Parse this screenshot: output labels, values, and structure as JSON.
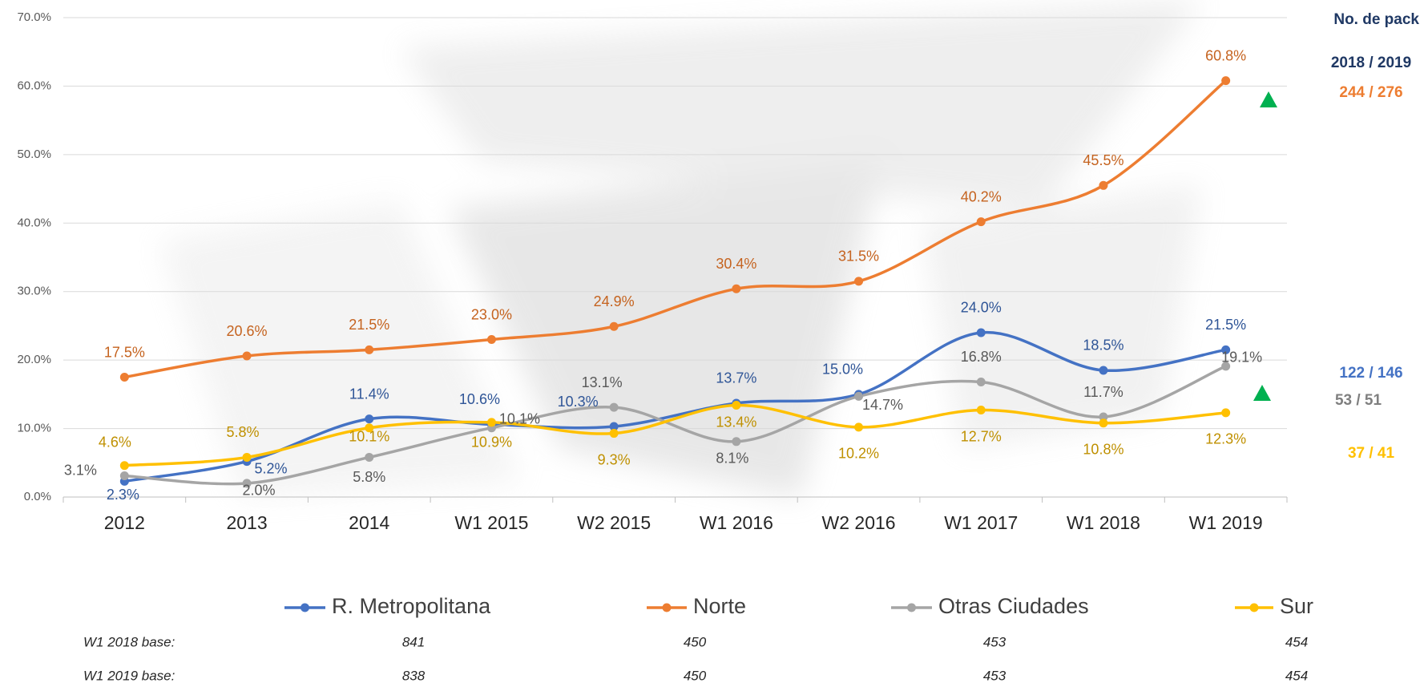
{
  "chart_data": {
    "type": "line",
    "categories": [
      "2012",
      "2013",
      "2014",
      "W1 2015",
      "W2 2015",
      "W1 2016",
      "W2 2016",
      "W1 2017",
      "W1 2018",
      "W1 2019"
    ],
    "ylim": [
      0,
      70
    ],
    "yticks": [
      {
        "value": 0,
        "label": "0.0%"
      },
      {
        "value": 10,
        "label": "10.0%"
      },
      {
        "value": 20,
        "label": "20.0%"
      },
      {
        "value": 30,
        "label": "30.0%"
      },
      {
        "value": 40,
        "label": "40.0%"
      },
      {
        "value": 50,
        "label": "50.0%"
      },
      {
        "value": 60,
        "label": "60.0%"
      },
      {
        "value": 70,
        "label": "70.0%"
      }
    ],
    "grid": true,
    "smooth": true,
    "legend": "bottom",
    "series": [
      {
        "name": "R. Metropolitana",
        "color": "#4472c4",
        "label_color": "#2f5597",
        "values": [
          2.3,
          5.2,
          11.4,
          10.6,
          10.3,
          13.7,
          15.0,
          24.0,
          18.5,
          21.5
        ],
        "value_labels": [
          "2.3%",
          "5.2%",
          "11.4%",
          "10.6%",
          "10.3%",
          "13.7%",
          "15.0%",
          "24.0%",
          "18.5%",
          "21.5%"
        ]
      },
      {
        "name": "Norte",
        "color": "#ed7d31",
        "label_color": "#c5631f",
        "values": [
          17.5,
          20.6,
          21.5,
          23.0,
          24.9,
          30.4,
          31.5,
          40.2,
          45.5,
          60.8
        ],
        "value_labels": [
          "17.5%",
          "20.6%",
          "21.5%",
          "23.0%",
          "24.9%",
          "30.4%",
          "31.5%",
          "40.2%",
          "45.5%",
          "60.8%"
        ]
      },
      {
        "name": "Otras Ciudades",
        "color": "#a5a5a5",
        "label_color": "#595959",
        "values": [
          3.1,
          2.0,
          5.8,
          10.1,
          13.1,
          8.1,
          14.7,
          16.8,
          11.7,
          19.1
        ],
        "value_labels": [
          "3.1%",
          "2.0%",
          "5.8%",
          "10.1%",
          "13.1%",
          "8.1%",
          "14.7%",
          "16.8%",
          "11.7%",
          "19.1%"
        ]
      },
      {
        "name": "Sur",
        "color": "#ffc000",
        "label_color": "#bf9000",
        "values": [
          4.6,
          5.8,
          10.1,
          10.9,
          9.3,
          13.4,
          10.2,
          12.7,
          10.8,
          12.3
        ],
        "value_labels": [
          "4.6%",
          "5.8%",
          "10.1%",
          "10.9%",
          "9.3%",
          "13.4%",
          "10.2%",
          "12.7%",
          "10.8%",
          "12.3%"
        ]
      }
    ]
  },
  "pack": {
    "title": "No. de pack",
    "header": "2018 / 2019",
    "values": [
      "244 / 276",
      "122 / 146",
      "53 / 51",
      "37 / 41"
    ]
  },
  "bases": [
    {
      "label": "W1 2018 base:",
      "values": [
        "841",
        "450",
        "453",
        "454"
      ]
    },
    {
      "label": "W1 2019 base:",
      "values": [
        "838",
        "450",
        "453",
        "454"
      ]
    }
  ]
}
